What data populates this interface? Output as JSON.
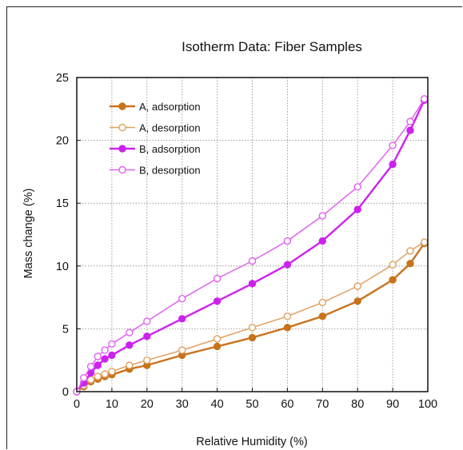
{
  "chart_data": {
    "type": "line",
    "title": "Isotherm Data: Fiber Samples",
    "xlabel": "Relative Humidity (%)",
    "ylabel": "Mass change (%)",
    "xlim": [
      0,
      100
    ],
    "ylim": [
      0,
      25
    ],
    "xticks": [
      "0",
      "10",
      "20",
      "30",
      "40",
      "50",
      "60",
      "70",
      "80",
      "90",
      "100"
    ],
    "yticks": [
      "0",
      "5",
      "10",
      "15",
      "20",
      "25"
    ],
    "grid": true,
    "legend_position": "top-left",
    "series": [
      {
        "name": "A, adsorption",
        "color": "#c8731b",
        "filled": true,
        "x": [
          0,
          2,
          4,
          6,
          8,
          10,
          15,
          20,
          30,
          40,
          50,
          60,
          70,
          80,
          90,
          95,
          99
        ],
        "y": [
          0,
          0.4,
          0.8,
          1.0,
          1.2,
          1.35,
          1.8,
          2.1,
          2.9,
          3.6,
          4.3,
          5.1,
          6.0,
          7.2,
          8.9,
          10.2,
          11.8
        ]
      },
      {
        "name": "A, desorption",
        "color": "#e0a060",
        "filled": false,
        "x": [
          0,
          2,
          4,
          6,
          8,
          10,
          15,
          20,
          30,
          40,
          50,
          60,
          70,
          80,
          90,
          95,
          99
        ],
        "y": [
          0,
          0.5,
          0.95,
          1.2,
          1.4,
          1.6,
          2.1,
          2.5,
          3.3,
          4.2,
          5.1,
          6.0,
          7.1,
          8.4,
          10.1,
          11.2,
          11.9
        ]
      },
      {
        "name": "B, adsorption",
        "color": "#cc22ee",
        "filled": true,
        "x": [
          0,
          2,
          4,
          6,
          8,
          10,
          15,
          20,
          30,
          40,
          50,
          60,
          70,
          80,
          90,
          95,
          99
        ],
        "y": [
          0,
          0.7,
          1.5,
          2.1,
          2.6,
          2.9,
          3.7,
          4.4,
          5.8,
          7.2,
          8.6,
          10.1,
          12.0,
          14.5,
          18.1,
          20.8,
          23.2
        ]
      },
      {
        "name": "B, desorption",
        "color": "#e060f0",
        "filled": false,
        "x": [
          0,
          2,
          4,
          6,
          8,
          10,
          15,
          20,
          30,
          40,
          50,
          60,
          70,
          80,
          90,
          95,
          99
        ],
        "y": [
          0,
          1.1,
          2.0,
          2.8,
          3.3,
          3.8,
          4.7,
          5.6,
          7.4,
          9.0,
          10.4,
          12.0,
          14.0,
          16.3,
          19.6,
          21.5,
          23.3
        ]
      }
    ]
  }
}
